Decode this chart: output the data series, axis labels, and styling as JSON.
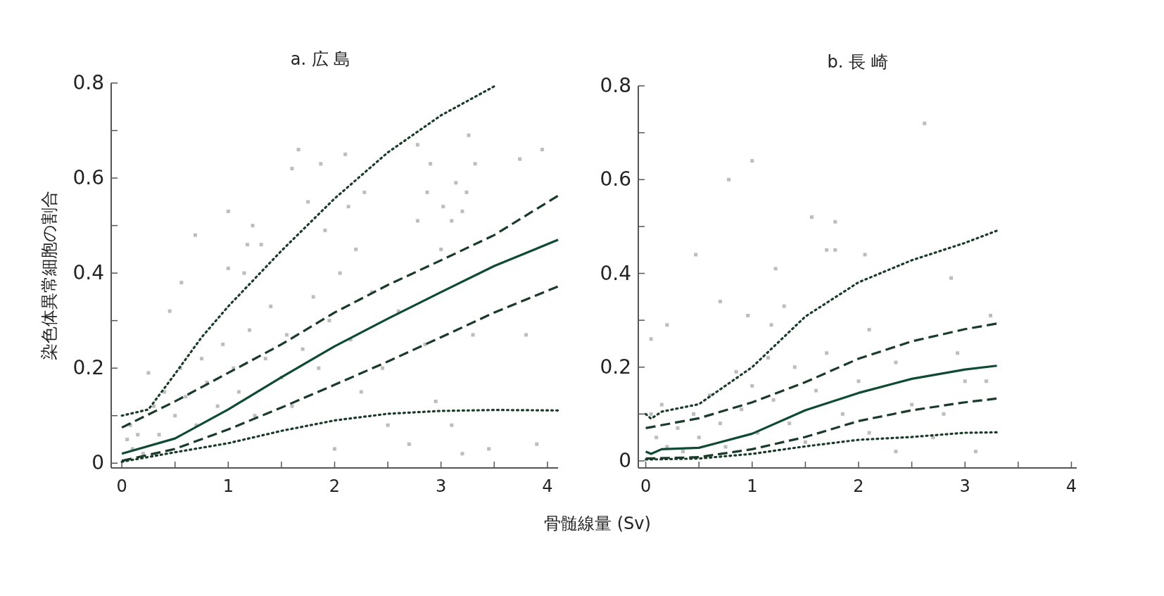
{
  "chart_data": [
    {
      "type": "line",
      "title": "a. 広 島",
      "xlabel": "骨髄線量 (Sv)",
      "ylabel": "染色体異常細胞の割合",
      "xlim": [
        -0.1,
        4.1
      ],
      "ylim": [
        -0.01,
        0.8
      ],
      "xticks": [
        0,
        {
          "value": 0.5,
          "label": null
        },
        1,
        {
          "value": 1.5,
          "label": null
        },
        2,
        {
          "value": 2.5,
          "label": null
        },
        3,
        {
          "value": 3.5,
          "label": null
        },
        4
      ],
      "yticks": [
        0,
        {
          "value": 0.1,
          "label": null
        },
        0.2,
        {
          "value": 0.3,
          "label": null
        },
        0.4,
        {
          "value": 0.5,
          "label": null
        },
        0.6,
        {
          "value": 0.7,
          "label": null
        },
        0.8
      ],
      "series": [
        {
          "type": "scatter",
          "marker": "square",
          "color": "#bdbdbd",
          "x": [
            1.66,
            1.87,
            1.6,
            2.1,
            2.78,
            2.9,
            3.26,
            3.32,
            3.74,
            3.95,
            3.14,
            2.87,
            3.24,
            2.28,
            1.75,
            1.0,
            2.13,
            3.02,
            3.2,
            2.78,
            3.1,
            0.69,
            1.23,
            1.31,
            1.18,
            1.91,
            2.2,
            1.0,
            0.56,
            0.05,
            0.1,
            0.15,
            0.2,
            0.08,
            0.3,
            0.35,
            0.4,
            0.5,
            0.55,
            0.6,
            0.7,
            0.75,
            0.8,
            0.9,
            0.95,
            1.05,
            1.1,
            1.2,
            1.25,
            1.35,
            1.4,
            1.5,
            1.55,
            1.6,
            1.7,
            1.8,
            1.85,
            1.95,
            2.0,
            2.05,
            2.15,
            2.25,
            2.35,
            2.45,
            2.5,
            2.6,
            2.7,
            2.85,
            2.95,
            3.0,
            3.1,
            3.2,
            3.3,
            3.45,
            3.8,
            3.9,
            0.25,
            0.45,
            1.15
          ],
          "values": [
            0.66,
            0.63,
            0.62,
            0.65,
            0.67,
            0.63,
            0.69,
            0.63,
            0.64,
            0.66,
            0.59,
            0.57,
            0.57,
            0.57,
            0.55,
            0.53,
            0.54,
            0.54,
            0.53,
            0.51,
            0.51,
            0.48,
            0.5,
            0.46,
            0.46,
            0.49,
            0.45,
            0.41,
            0.38,
            0.05,
            0.03,
            0.06,
            0.02,
            0.08,
            0.12,
            0.06,
            0.15,
            0.1,
            0.2,
            0.14,
            0.08,
            0.22,
            0.17,
            0.12,
            0.25,
            0.2,
            0.15,
            0.28,
            0.1,
            0.22,
            0.33,
            0.18,
            0.27,
            0.12,
            0.24,
            0.35,
            0.2,
            0.3,
            0.03,
            0.4,
            0.26,
            0.15,
            0.36,
            0.2,
            0.08,
            0.32,
            0.04,
            0.25,
            0.13,
            0.45,
            0.08,
            0.02,
            0.27,
            0.03,
            0.27,
            0.04,
            0.19,
            0.32,
            0.4
          ]
        },
        {
          "type": "line",
          "line_style": "dotted",
          "color": "#1a3a2a",
          "x": [
            0,
            0.25,
            0.5,
            0.75,
            1,
            1.5,
            2,
            2.5,
            3,
            3.5
          ],
          "values": [
            0.1,
            0.113,
            0.188,
            0.265,
            0.33,
            0.447,
            0.557,
            0.654,
            0.732,
            0.793
          ]
        },
        {
          "type": "line",
          "line_style": "dashed",
          "color": "#1a3a2a",
          "x": [
            0,
            0.5,
            1,
            1.5,
            2,
            2.5,
            3,
            3.5,
            4.1
          ],
          "values": [
            0.075,
            0.13,
            0.19,
            0.25,
            0.317,
            0.375,
            0.427,
            0.48,
            0.563
          ]
        },
        {
          "type": "line",
          "line_style": "solid",
          "color": "#0f4a33",
          "x": [
            0,
            0.5,
            1,
            1.5,
            2,
            2.5,
            3,
            3.5,
            4.1
          ],
          "values": [
            0.02,
            0.052,
            0.113,
            0.181,
            0.246,
            0.304,
            0.36,
            0.415,
            0.47
          ]
        },
        {
          "type": "line",
          "line_style": "dashed",
          "color": "#1a3a2a",
          "x": [
            0,
            0.5,
            1,
            1.5,
            2,
            2.5,
            3,
            3.5,
            4.1
          ],
          "values": [
            0.005,
            0.03,
            0.071,
            0.117,
            0.165,
            0.214,
            0.265,
            0.317,
            0.372
          ]
        },
        {
          "type": "line",
          "line_style": "dotted",
          "color": "#1a3a2a",
          "x": [
            0,
            0.5,
            1,
            1.5,
            2,
            2.5,
            3,
            3.5,
            4.1
          ],
          "values": [
            0.003,
            0.023,
            0.042,
            0.068,
            0.09,
            0.104,
            0.11,
            0.112,
            0.111
          ]
        }
      ]
    },
    {
      "type": "line",
      "title": "b. 長 崎",
      "xlim": [
        -0.07,
        4.05
      ],
      "ylim": [
        -0.015,
        0.8
      ],
      "xticks": [
        0,
        {
          "value": 0.5,
          "label": null
        },
        1,
        {
          "value": 1.5,
          "label": null
        },
        2,
        {
          "value": 2.5,
          "label": null
        },
        3,
        {
          "value": 3.5,
          "label": null
        },
        4
      ],
      "yticks": [
        0,
        {
          "value": 0.1,
          "label": null
        },
        0.2,
        {
          "value": 0.3,
          "label": null
        },
        0.4,
        {
          "value": 0.5,
          "label": null
        },
        0.6,
        {
          "value": 0.7,
          "label": null
        },
        0.8
      ],
      "series": [
        {
          "type": "scatter",
          "marker": "square",
          "color": "#bdbdbd",
          "x": [
            2.62,
            1.0,
            0.78,
            1.56,
            1.78,
            1.7,
            1.78,
            0.47,
            2.06,
            1.22,
            2.87,
            0.7,
            1.3,
            0.96,
            0.2,
            1.18,
            3.24,
            0.05,
            2.1,
            2.93,
            2.35,
            3.0,
            3.2,
            0.05,
            0.1,
            0.15,
            0.2,
            0.3,
            0.35,
            0.45,
            0.5,
            0.6,
            0.7,
            0.75,
            0.85,
            0.9,
            1.0,
            1.05,
            1.15,
            1.2,
            1.35,
            1.4,
            1.5,
            1.6,
            1.7,
            1.85,
            2.0,
            2.1,
            2.35,
            2.5,
            2.7,
            2.8,
            3.1
          ],
          "values": [
            0.72,
            0.64,
            0.6,
            0.52,
            0.51,
            0.45,
            0.45,
            0.44,
            0.44,
            0.41,
            0.39,
            0.34,
            0.33,
            0.31,
            0.29,
            0.29,
            0.31,
            0.26,
            0.28,
            0.23,
            0.21,
            0.17,
            0.17,
            0.1,
            0.05,
            0.12,
            0.03,
            0.07,
            0.02,
            0.1,
            0.05,
            0.14,
            0.08,
            0.03,
            0.19,
            0.11,
            0.16,
            0.06,
            0.22,
            0.13,
            0.08,
            0.2,
            0.04,
            0.15,
            0.23,
            0.1,
            0.17,
            0.06,
            0.02,
            0.12,
            0.05,
            0.1,
            0.02
          ]
        },
        {
          "type": "line",
          "line_style": "dotted",
          "color": "#1a3a2a",
          "x": [
            0,
            0.05,
            0.15,
            0.5,
            1,
            1.5,
            2,
            2.5,
            3,
            3.3
          ],
          "values": [
            0.1,
            0.09,
            0.105,
            0.121,
            0.2,
            0.308,
            0.381,
            0.428,
            0.465,
            0.491
          ]
        },
        {
          "type": "line",
          "line_style": "dashed",
          "color": "#1a3a2a",
          "x": [
            0,
            0.5,
            1,
            1.5,
            2,
            2.5,
            3,
            3.3
          ],
          "values": [
            0.07,
            0.091,
            0.125,
            0.168,
            0.218,
            0.255,
            0.281,
            0.293
          ]
        },
        {
          "type": "line",
          "line_style": "solid",
          "color": "#0f4a33",
          "x": [
            0,
            0.05,
            0.15,
            0.5,
            1,
            1.5,
            2,
            2.5,
            3,
            3.3
          ],
          "values": [
            0.02,
            0.015,
            0.025,
            0.028,
            0.058,
            0.108,
            0.145,
            0.175,
            0.195,
            0.203
          ]
        },
        {
          "type": "line",
          "line_style": "dashed",
          "color": "#1a3a2a",
          "x": [
            0,
            0.5,
            1,
            1.5,
            2,
            2.5,
            3,
            3.3
          ],
          "values": [
            0.005,
            0.008,
            0.025,
            0.051,
            0.085,
            0.108,
            0.125,
            0.133
          ]
        },
        {
          "type": "line",
          "line_style": "dotted",
          "color": "#1a3a2a",
          "x": [
            0,
            0.5,
            1,
            1.5,
            2,
            2.5,
            3,
            3.3
          ],
          "values": [
            0.003,
            0.005,
            0.015,
            0.031,
            0.045,
            0.051,
            0.06,
            0.061
          ]
        }
      ]
    }
  ]
}
